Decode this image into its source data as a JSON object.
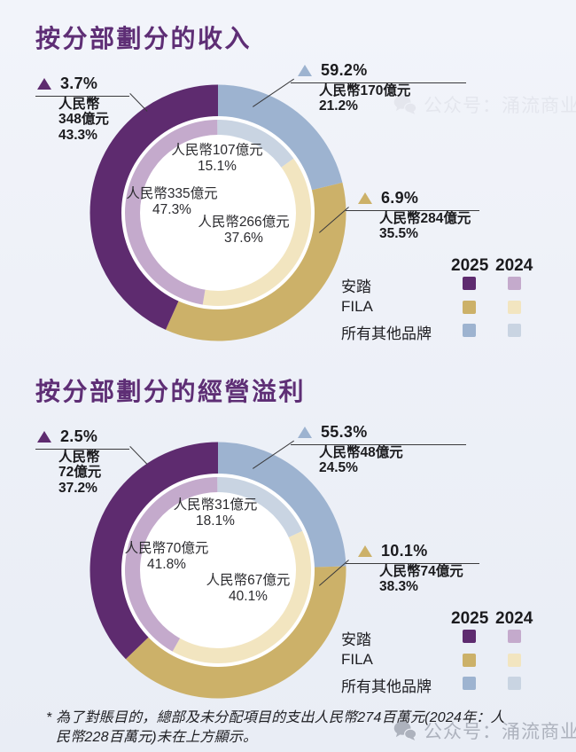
{
  "colors": {
    "title": "#5e2e75",
    "background": "#eef1f8",
    "anta_2025": "#5e2b6f",
    "anta_2024": "#c4aacc",
    "fila_2025": "#ccb169",
    "fila_2024": "#f2e5c0",
    "other_2025": "#9db3d0",
    "other_2024": "#c9d4e2"
  },
  "legend": {
    "col_2025": "2025",
    "col_2024": "2024",
    "rows": [
      {
        "label": "安踏",
        "c2025": "#5e2b6f",
        "c2024": "#c4aacc"
      },
      {
        "label": "FILA",
        "c2025": "#ccb169",
        "c2024": "#f2e5c0"
      },
      {
        "label": "所有其他品牌",
        "c2025": "#9db3d0",
        "c2024": "#c9d4e2"
      }
    ]
  },
  "watermark": {
    "text": "公众号：涌流商业"
  },
  "footnote": "* 為了對賬目的，總部及未分配項目的支出人民幣274百萬元(2024年：人民幣228百萬元)未在上方顯示。",
  "chart_data": [
    {
      "type": "donut",
      "title": "按分部劃分的收入",
      "unit": "人民幣億元",
      "categories": [
        "安踏",
        "FILA",
        "所有其他品牌"
      ],
      "draw_order": [
        2,
        1,
        0
      ],
      "legend_position": "right-bottom",
      "rings": [
        {
          "year": "2025",
          "position": "outer",
          "values_billion_rmb": [
            348,
            284,
            170
          ],
          "share_pct": [
            43.3,
            35.5,
            21.2
          ],
          "colors": [
            "#5e2b6f",
            "#ccb169",
            "#9db3d0"
          ]
        },
        {
          "year": "2024",
          "position": "inner",
          "values_billion_rmb": [
            335,
            266,
            107
          ],
          "share_pct": [
            47.3,
            37.6,
            15.1
          ],
          "colors": [
            "#c4aacc",
            "#f2e5c0",
            "#c9d4e2"
          ]
        }
      ],
      "yoy_growth_pct": [
        3.7,
        6.9,
        59.2
      ],
      "callouts": {
        "anta": {
          "growth": "3.7%",
          "line1": "人民幣",
          "line2": "348億元",
          "line3": "43.3%"
        },
        "other": {
          "growth": "59.2%",
          "line1": "人民幣170億元",
          "line2": "21.2%"
        },
        "fila": {
          "growth": "6.9%",
          "line1": "人民幣284億元",
          "line2": "35.5%"
        }
      },
      "inner_labels": [
        {
          "line1": "人民幣107億元",
          "line2": "15.1%"
        },
        {
          "line1": "人民幣335億元",
          "line2": "47.3%"
        },
        {
          "line1": "人民幣266億元",
          "line2": "37.6%"
        }
      ]
    },
    {
      "type": "donut",
      "title": "按分部劃分的經營溢利",
      "unit": "人民幣億元",
      "categories": [
        "安踏",
        "FILA",
        "所有其他品牌"
      ],
      "draw_order": [
        2,
        1,
        0
      ],
      "legend_position": "right-bottom",
      "rings": [
        {
          "year": "2025",
          "position": "outer",
          "values_billion_rmb": [
            72,
            74,
            48
          ],
          "share_pct": [
            37.2,
            38.3,
            24.5
          ],
          "colors": [
            "#5e2b6f",
            "#ccb169",
            "#9db3d0"
          ]
        },
        {
          "year": "2024",
          "position": "inner",
          "values_billion_rmb": [
            70,
            67,
            31
          ],
          "share_pct": [
            41.8,
            40.1,
            18.1
          ],
          "colors": [
            "#c4aacc",
            "#f2e5c0",
            "#c9d4e2"
          ]
        }
      ],
      "yoy_growth_pct": [
        2.5,
        10.1,
        55.3
      ],
      "callouts": {
        "anta": {
          "growth": "2.5%",
          "line1": "人民幣",
          "line2": "72億元",
          "line3": "37.2%"
        },
        "other": {
          "growth": "55.3%",
          "line1": "人民幣48億元",
          "line2": "24.5%"
        },
        "fila": {
          "growth": "10.1%",
          "line1": "人民幣74億元",
          "line2": "38.3%"
        }
      },
      "inner_labels": [
        {
          "line1": "人民幣31億元",
          "line2": "18.1%"
        },
        {
          "line1": "人民幣70億元",
          "line2": "41.8%"
        },
        {
          "line1": "人民幣67億元",
          "line2": "40.1%"
        }
      ]
    }
  ]
}
